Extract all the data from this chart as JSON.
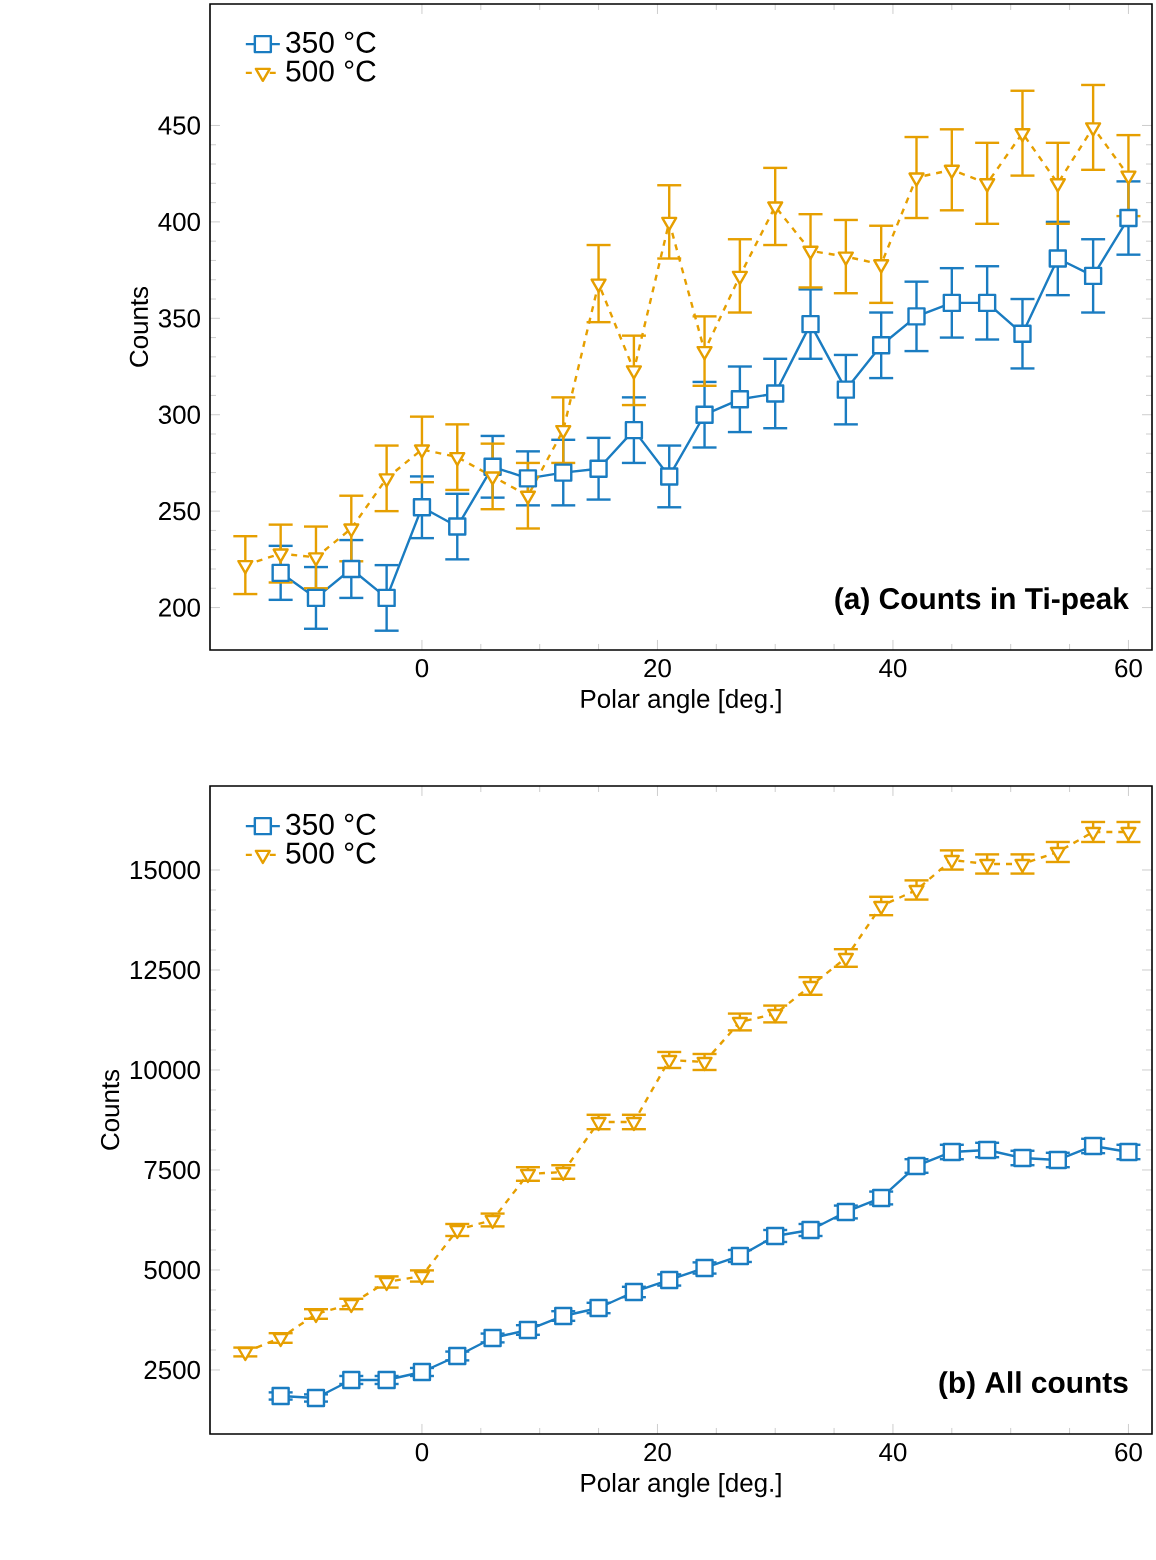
{
  "chart_data": [
    {
      "type": "line",
      "xlabel": "Polar angle [deg.]",
      "ylabel": "Counts",
      "annotations": [
        "(a) Counts in Ti-peak"
      ],
      "legend": "top left",
      "x": [
        -15,
        -12,
        -9,
        -6,
        -3,
        0,
        3,
        6,
        9,
        12,
        15,
        18,
        21,
        24,
        27,
        30,
        33,
        36,
        39,
        42,
        45,
        48,
        51,
        54,
        57,
        60
      ],
      "xlim": [
        -18,
        62
      ],
      "xticks": [
        0,
        20,
        40,
        60
      ],
      "ylim": [
        178,
        513
      ],
      "yticks": [
        200,
        250,
        300,
        350,
        400,
        450
      ],
      "series": [
        {
          "name": "350 °C",
          "color": "#1a7cc1",
          "marker": "square",
          "line_style": "solid",
          "values": [
            null,
            218,
            205,
            220,
            205,
            252,
            242,
            273,
            267,
            270,
            272,
            292,
            268,
            300,
            308,
            311,
            347,
            313,
            336,
            351,
            358,
            358,
            342,
            381,
            372,
            402
          ],
          "errors": [
            null,
            14,
            16,
            15,
            17,
            16,
            17,
            16,
            14,
            17,
            16,
            17,
            16,
            17,
            17,
            18,
            18,
            18,
            17,
            18,
            18,
            19,
            18,
            19,
            19,
            19
          ]
        },
        {
          "name": "500 °C",
          "color": "#e69f00",
          "marker": "triangle",
          "line_style": "dashed",
          "values": [
            222,
            228,
            226,
            241,
            267,
            282,
            278,
            268,
            258,
            292,
            368,
            323,
            400,
            333,
            372,
            408,
            385,
            382,
            378,
            423,
            427,
            420,
            446,
            420,
            449,
            424
          ],
          "errors": [
            15,
            15,
            16,
            17,
            17,
            17,
            17,
            17,
            17,
            17,
            20,
            18,
            19,
            18,
            19,
            20,
            19,
            19,
            20,
            21,
            21,
            21,
            22,
            21,
            22,
            21
          ]
        }
      ]
    },
    {
      "type": "line",
      "xlabel": "Polar angle [deg.]",
      "ylabel": "Counts",
      "annotations": [
        "(b) All counts"
      ],
      "legend": "top left",
      "x": [
        -15,
        -12,
        -9,
        -6,
        -3,
        0,
        3,
        6,
        9,
        12,
        15,
        18,
        21,
        24,
        27,
        30,
        33,
        36,
        39,
        42,
        45,
        48,
        51,
        54,
        57,
        60
      ],
      "xlim": [
        -18,
        62
      ],
      "xticks": [
        0,
        20,
        40,
        60
      ],
      "ylim": [
        900,
        17100
      ],
      "yticks": [
        2500,
        5000,
        7500,
        10000,
        12500,
        15000
      ],
      "series": [
        {
          "name": "350 °C",
          "color": "#1a7cc1",
          "marker": "square",
          "line_style": "solid",
          "values": [
            null,
            1850,
            1800,
            2250,
            2250,
            2450,
            2850,
            3300,
            3500,
            3850,
            4050,
            4450,
            4750,
            5050,
            5350,
            5850,
            6000,
            6450,
            6800,
            7600,
            7950,
            8000,
            7800,
            7750,
            8100,
            7950
          ],
          "errors": [
            null,
            90,
            90,
            100,
            100,
            100,
            110,
            110,
            120,
            120,
            130,
            130,
            140,
            140,
            150,
            150,
            150,
            160,
            160,
            170,
            180,
            180,
            180,
            180,
            180,
            180
          ]
        },
        {
          "name": "500 °C",
          "color": "#e69f00",
          "marker": "triangle",
          "line_style": "dashed",
          "values": [
            2950,
            3300,
            3900,
            4150,
            4700,
            4850,
            6000,
            6250,
            7400,
            7450,
            8700,
            8700,
            10250,
            10200,
            11200,
            11400,
            12100,
            12800,
            14100,
            14500,
            15250,
            15150,
            15150,
            15450,
            15950,
            15950
          ],
          "errors": [
            110,
            120,
            120,
            130,
            140,
            140,
            150,
            160,
            170,
            170,
            180,
            180,
            200,
            200,
            210,
            210,
            220,
            220,
            230,
            240,
            240,
            240,
            240,
            250,
            250,
            250
          ]
        }
      ]
    }
  ]
}
